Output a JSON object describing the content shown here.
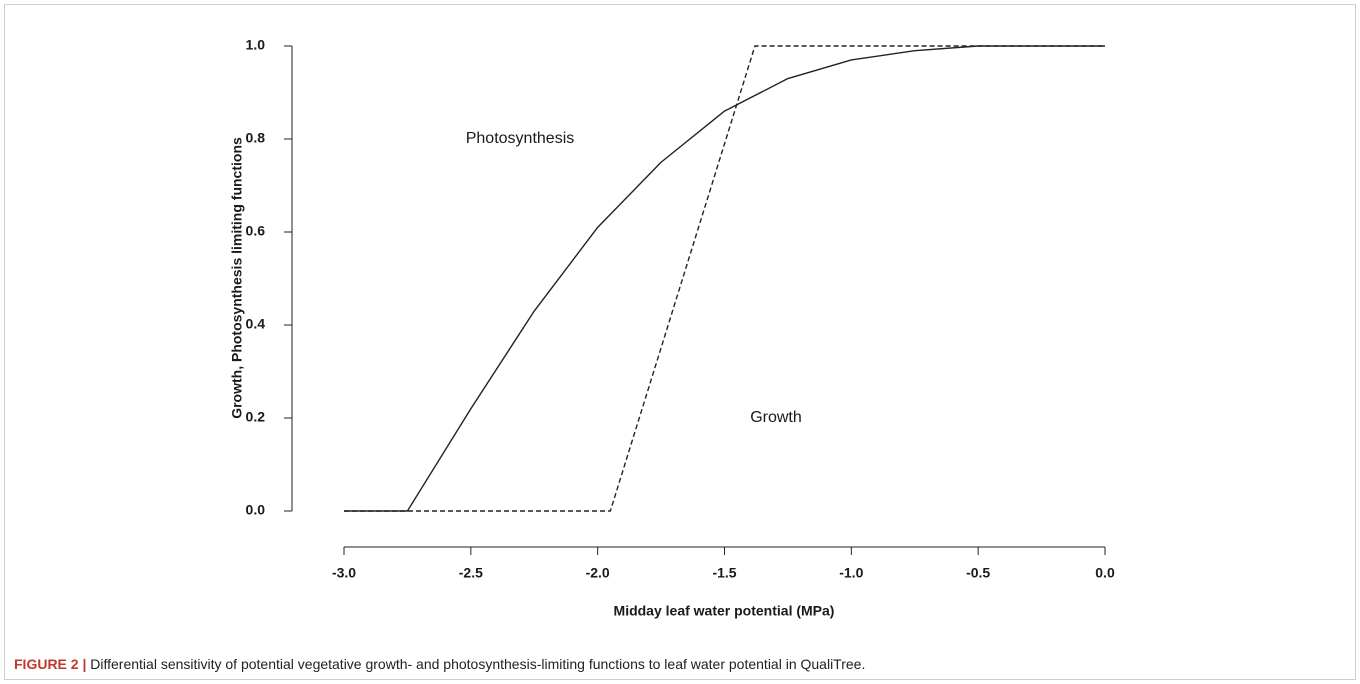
{
  "chart_data": {
    "type": "line",
    "x_label": "Midday leaf water potential (MPa)",
    "y_label": "Growth, Photosynthesis limiting functions",
    "series": [
      {
        "name": "Photosynthesis",
        "color": "#222222",
        "dash": "solid",
        "x": [
          -3.0,
          -2.75,
          -2.5,
          -2.25,
          -2.0,
          -1.75,
          -1.5,
          -1.25,
          -1.0,
          -0.75,
          -0.5,
          -0.25,
          0.0
        ],
        "values": [
          0,
          0,
          0.22,
          0.43,
          0.61,
          0.75,
          0.86,
          0.93,
          0.97,
          0.99,
          1.0,
          1.0,
          1.0
        ]
      },
      {
        "name": "Growth",
        "color": "#222222",
        "dash": "dashed",
        "x": [
          -3.0,
          -1.95,
          -1.38,
          0.0
        ],
        "values": [
          0,
          0,
          1.0,
          1.0
        ]
      }
    ],
    "xlim": [
      -3.0,
      0.0
    ],
    "ylim": [
      0.0,
      1.0
    ],
    "xticks": [
      {
        "value": -3.0,
        "label": "-3.0"
      },
      {
        "value": -2.5,
        "label": "-2.5"
      },
      {
        "value": -2.0,
        "label": "-2.0"
      },
      {
        "value": -1.5,
        "label": "-1.5"
      },
      {
        "value": -1.0,
        "label": "-1.0"
      },
      {
        "value": -0.5,
        "label": "-0.5"
      },
      {
        "value": 0.0,
        "label": "0.0"
      }
    ],
    "yticks": [
      {
        "value": 0.0,
        "label": "0.0"
      },
      {
        "value": 0.2,
        "label": "0.2"
      },
      {
        "value": 0.4,
        "label": "0.4"
      },
      {
        "value": 0.6,
        "label": "0.6"
      },
      {
        "value": 0.8,
        "label": "0.8"
      },
      {
        "value": 1.0,
        "label": "1.0"
      }
    ],
    "grid": false
  },
  "caption": {
    "label": "FIGURE 2 |",
    "text": " Differential sensitivity of potential vegetative growth- and photosynthesis-limiting functions to leaf water potential in QualiTree."
  }
}
